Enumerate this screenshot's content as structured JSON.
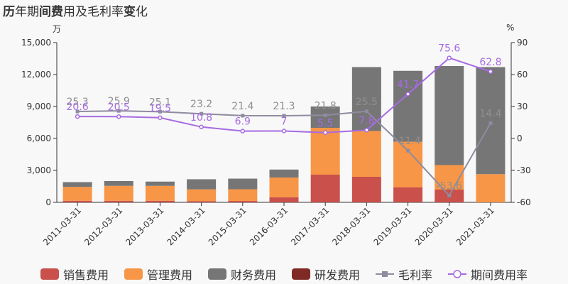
{
  "title_parts": [
    "历",
    "年期",
    "间费",
    "用及毛利率",
    "变",
    "化"
  ],
  "left_unit": "万",
  "right_unit": "%",
  "colors": {
    "sales": "#c9504b",
    "admin": "#f79646",
    "finance": "#767676",
    "rnd": "#7f2a24",
    "gross": "#8f8ba0",
    "expense": "#a66be3",
    "gross_label": "#8f8f8f",
    "expense_label": "#a66be3",
    "grid": "#dddddd",
    "axis_text": "#333333"
  },
  "chart_data": {
    "type": "bar",
    "categories": [
      "2011-03-31",
      "2012-03-31",
      "2013-03-31",
      "2014-03-31",
      "2015-03-31",
      "2016-03-31",
      "2017-03-31",
      "2018-03-31",
      "2019-03-31",
      "2020-03-31",
      "2021-03-31"
    ],
    "left_axis": {
      "min": 0,
      "max": 15000,
      "ticks": [
        "0",
        "3,000",
        "6,000",
        "9,000",
        "12,000",
        "15,000"
      ]
    },
    "right_axis": {
      "min": -60,
      "max": 90,
      "ticks": [
        "-60",
        "-30",
        "0",
        "30",
        "60",
        "90"
      ]
    },
    "stacked": true,
    "series": [
      {
        "name": "销售费用",
        "key": "sales",
        "values": [
          150,
          150,
          150,
          120,
          130,
          480,
          2600,
          2400,
          1400,
          1200,
          0
        ]
      },
      {
        "name": "管理费用",
        "key": "admin",
        "values": [
          1300,
          1400,
          1400,
          1100,
          1100,
          1850,
          4400,
          4300,
          4300,
          2300,
          2650
        ]
      },
      {
        "name": "财务费用",
        "key": "finance",
        "values": [
          450,
          450,
          400,
          950,
          1000,
          750,
          2000,
          6000,
          6650,
          9300,
          10050
        ]
      },
      {
        "name": "研发费用",
        "key": "rnd",
        "values": [
          0,
          0,
          0,
          0,
          0,
          0,
          0,
          0,
          0,
          0,
          0
        ]
      }
    ],
    "lines": [
      {
        "name": "毛利率",
        "key": "gross",
        "axis": "right",
        "values": [
          25.3,
          25.9,
          25.1,
          23.2,
          21.4,
          21.3,
          21.8,
          25.5,
          -11.4,
          -53.6,
          14.4
        ]
      },
      {
        "name": "期间费用率",
        "key": "expense",
        "axis": "right",
        "values": [
          20.6,
          20.5,
          19.5,
          10.8,
          6.9,
          7,
          5.5,
          7.8,
          41.7,
          75.6,
          62.8
        ]
      }
    ],
    "gross_labels": [
      "25.3",
      "25.9",
      "25.1",
      "23.2",
      "21.4",
      "21.3",
      "21.8",
      "25.5",
      "-11.4",
      "-53.6",
      "14.4"
    ],
    "expense_labels": [
      "20.6",
      "20.5",
      "19.5",
      "10.8",
      "6.9",
      "7",
      "5.5",
      "7.8",
      "41.7",
      "75.6",
      "62.8"
    ],
    "legend_position": "bottom",
    "grid": false
  }
}
